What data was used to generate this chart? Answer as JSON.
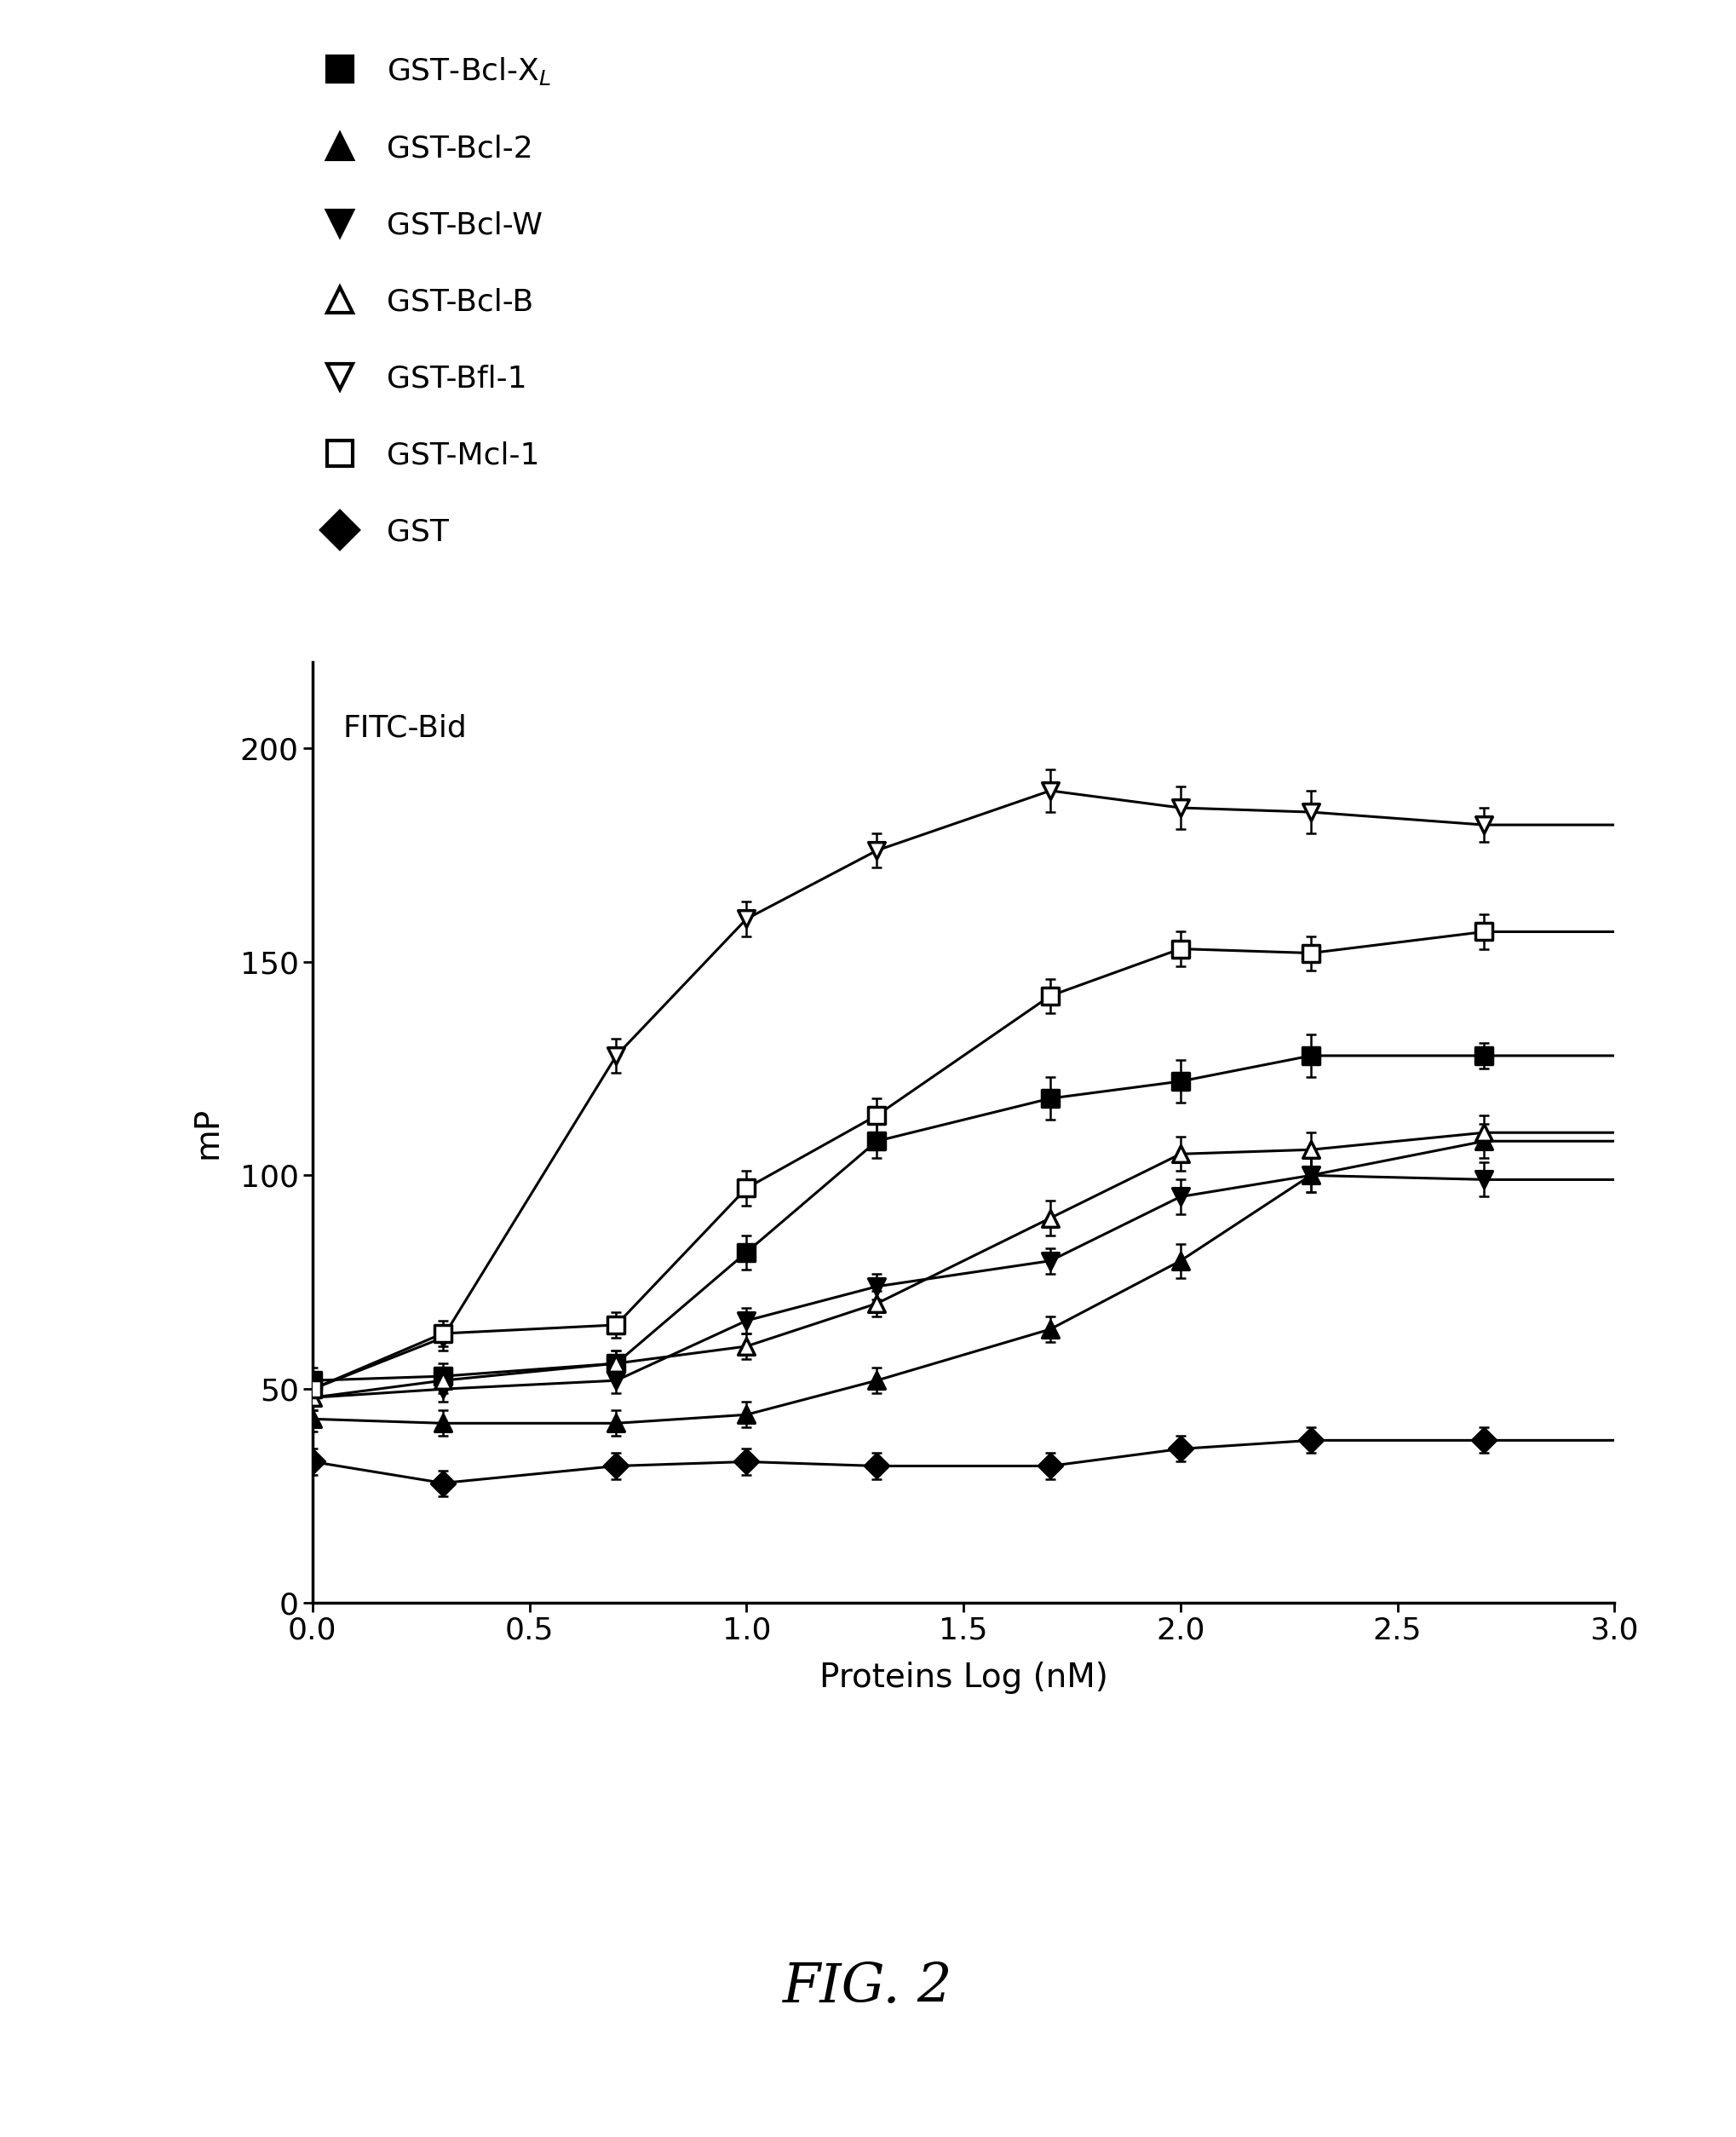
{
  "title": "FIG. 2",
  "xlabel": "Proteins Log (nM)",
  "ylabel": "mP",
  "annotation": "FITC-Bid",
  "xlim": [
    0.0,
    3.0
  ],
  "ylim": [
    0,
    220
  ],
  "yticks": [
    0,
    50,
    100,
    150,
    200
  ],
  "xticks": [
    0.0,
    0.5,
    1.0,
    1.5,
    2.0,
    2.5,
    3.0
  ],
  "series": [
    {
      "label": "GST-Bcl-X$_L$",
      "marker": "s",
      "filled": true,
      "x": [
        0.0,
        0.3,
        0.7,
        1.0,
        1.3,
        1.7,
        2.0,
        2.3,
        2.7
      ],
      "y": [
        52,
        53,
        56,
        82,
        108,
        118,
        122,
        128,
        128
      ],
      "yerr": [
        3,
        3,
        3,
        4,
        4,
        5,
        5,
        5,
        3
      ],
      "fit_p0": [
        50,
        130,
        0.9,
        2.0
      ]
    },
    {
      "label": "GST-Bcl-2",
      "marker": "^",
      "filled": true,
      "x": [
        0.0,
        0.3,
        0.7,
        1.0,
        1.3,
        1.7,
        2.0,
        2.3,
        2.7
      ],
      "y": [
        43,
        42,
        42,
        44,
        52,
        64,
        80,
        100,
        108
      ],
      "yerr": [
        3,
        3,
        3,
        3,
        3,
        3,
        4,
        4,
        4
      ],
      "fit_p0": [
        40,
        112,
        1.9,
        2.0
      ]
    },
    {
      "label": "GST-Bcl-W",
      "marker": "v",
      "filled": true,
      "x": [
        0.0,
        0.3,
        0.7,
        1.0,
        1.3,
        1.7,
        2.0,
        2.3,
        2.7
      ],
      "y": [
        48,
        50,
        52,
        66,
        74,
        80,
        95,
        100,
        99
      ],
      "yerr": [
        3,
        3,
        3,
        3,
        3,
        3,
        4,
        4,
        4
      ],
      "fit_p0": [
        46,
        103,
        1.3,
        2.5
      ]
    },
    {
      "label": "GST-Bcl-B",
      "marker": "^",
      "filled": false,
      "x": [
        0.0,
        0.3,
        0.7,
        1.0,
        1.3,
        1.7,
        2.0,
        2.3,
        2.7
      ],
      "y": [
        48,
        52,
        56,
        60,
        70,
        90,
        105,
        106,
        110
      ],
      "yerr": [
        3,
        3,
        3,
        3,
        3,
        4,
        4,
        4,
        4
      ],
      "fit_p0": [
        46,
        112,
        1.6,
        2.0
      ]
    },
    {
      "label": "GST-Bfl-1",
      "marker": "v",
      "filled": false,
      "x": [
        0.0,
        0.3,
        0.7,
        1.0,
        1.3,
        1.7,
        2.0,
        2.3,
        2.7
      ],
      "y": [
        50,
        62,
        128,
        160,
        176,
        190,
        186,
        185,
        182
      ],
      "yerr": [
        3,
        3,
        4,
        4,
        4,
        5,
        5,
        5,
        4
      ],
      "fit_p0": [
        48,
        185,
        0.65,
        3.5
      ]
    },
    {
      "label": "GST-Mcl-1",
      "marker": "s",
      "filled": false,
      "x": [
        0.0,
        0.3,
        0.7,
        1.0,
        1.3,
        1.7,
        2.0,
        2.3,
        2.7
      ],
      "y": [
        50,
        63,
        65,
        97,
        114,
        142,
        153,
        152,
        157
      ],
      "yerr": [
        3,
        3,
        3,
        4,
        4,
        4,
        4,
        4,
        4
      ],
      "fit_p0": [
        48,
        160,
        1.1,
        2.0
      ]
    },
    {
      "label": "GST",
      "marker": "D",
      "filled": true,
      "x": [
        0.0,
        0.3,
        0.7,
        1.0,
        1.3,
        1.7,
        2.0,
        2.3,
        2.7
      ],
      "y": [
        33,
        28,
        32,
        33,
        32,
        32,
        36,
        38,
        38
      ],
      "yerr": [
        3,
        3,
        3,
        3,
        3,
        3,
        3,
        3,
        3
      ],
      "fit_p0": [
        28,
        40,
        2.0,
        1.0
      ]
    }
  ]
}
